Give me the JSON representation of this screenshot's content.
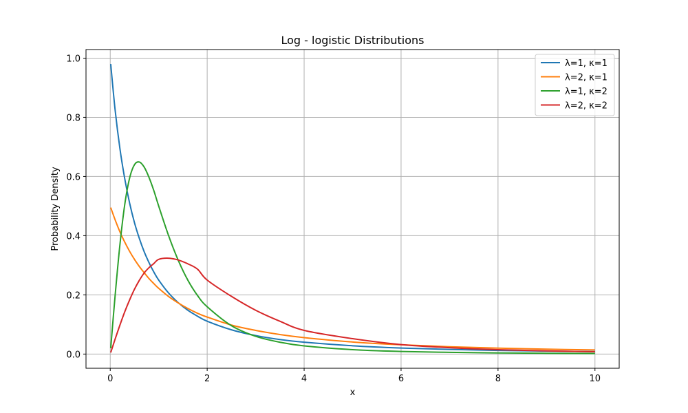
{
  "chart_data": {
    "type": "line",
    "title": "Log - logistic Distributions",
    "xlabel": "x",
    "ylabel": "Probability Density",
    "xlim": [
      -0.5,
      10.5
    ],
    "ylim": [
      -0.048,
      1.029
    ],
    "x_ticks": [
      0,
      2,
      4,
      6,
      8,
      10
    ],
    "x_tick_labels": [
      "0",
      "2",
      "4",
      "6",
      "8",
      "10"
    ],
    "y_ticks": [
      0.0,
      0.2,
      0.4,
      0.6,
      0.8,
      1.0
    ],
    "y_tick_labels": [
      "0.0",
      "0.2",
      "0.4",
      "0.6",
      "0.8",
      "1.0"
    ],
    "grid": true,
    "legend_position": "top-right",
    "x": [
      0.01,
      0.1,
      0.2,
      0.3,
      0.4,
      0.5,
      0.6,
      0.7,
      0.8,
      0.9,
      1.0,
      1.2,
      1.4,
      1.6,
      1.8,
      2.0,
      2.5,
      3.0,
      3.5,
      4.0,
      5.0,
      6.0,
      7.0,
      8.0,
      9.0,
      10.0
    ],
    "series": [
      {
        "name": "λ=1, κ=1",
        "color": "#1f77b4",
        "values": [
          0.98,
          0.826,
          0.694,
          0.592,
          0.51,
          0.444,
          0.391,
          0.346,
          0.309,
          0.277,
          0.25,
          0.207,
          0.174,
          0.148,
          0.128,
          0.111,
          0.082,
          0.0625,
          0.049,
          0.04,
          0.028,
          0.0204,
          0.0156,
          0.0123,
          0.01,
          0.0083
        ]
      },
      {
        "name": "λ=2, κ=1",
        "color": "#ff7f0e",
        "values": [
          0.495,
          0.454,
          0.413,
          0.378,
          0.347,
          0.32,
          0.296,
          0.275,
          0.255,
          0.238,
          0.222,
          0.195,
          0.173,
          0.154,
          0.138,
          0.125,
          0.098,
          0.08,
          0.066,
          0.0556,
          0.0408,
          0.03125,
          0.0247,
          0.02,
          0.0165,
          0.0139
        ]
      },
      {
        "name": "λ=1, κ=2",
        "color": "#2ca02c",
        "values": [
          0.02,
          0.196,
          0.37,
          0.506,
          0.595,
          0.64,
          0.649,
          0.632,
          0.597,
          0.552,
          0.5,
          0.402,
          0.318,
          0.25,
          0.198,
          0.16,
          0.096,
          0.06,
          0.04,
          0.0277,
          0.0148,
          0.0088,
          0.0057,
          0.0038,
          0.0027,
          0.002
        ]
      },
      {
        "name": "λ=2, κ=2",
        "color": "#d62728",
        "values": [
          0.005,
          0.05,
          0.098,
          0.143,
          0.183,
          0.219,
          0.249,
          0.274,
          0.292,
          0.306,
          0.32,
          0.324,
          0.318,
          0.305,
          0.287,
          0.25,
          0.195,
          0.148,
          0.111,
          0.08,
          0.052,
          0.032,
          0.0214,
          0.0147,
          0.0106,
          0.0079
        ]
      }
    ]
  }
}
